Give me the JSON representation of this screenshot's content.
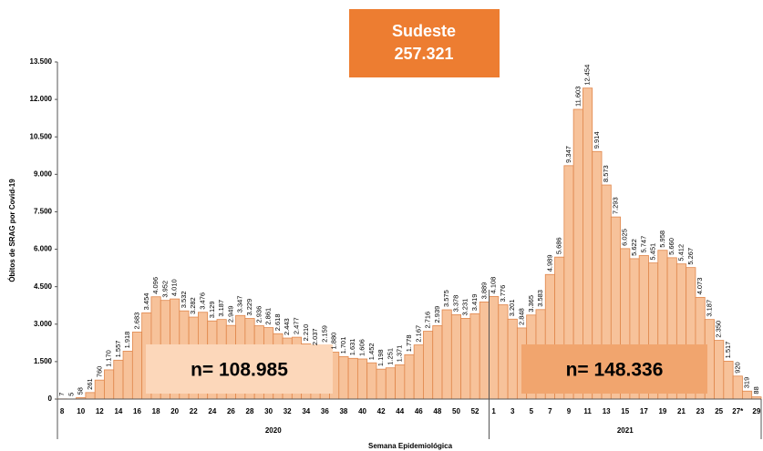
{
  "chart_data": {
    "type": "bar",
    "title": "Sudeste",
    "subtitle": "257.321",
    "ylabel": "Óbitos de SRAG por Covid-19",
    "xlabel": "Semana Epidemiológica",
    "groups": [
      "2020",
      "2021"
    ],
    "annotations": [
      "n= 108.985",
      "n= 148.336"
    ],
    "color": "#f7c29a",
    "edge_color": "#e0874c",
    "categories": [
      "8",
      null,
      "10",
      null,
      "12",
      null,
      "14",
      null,
      "16",
      null,
      "18",
      null,
      "20",
      null,
      "22",
      null,
      "24",
      null,
      "26",
      null,
      "28",
      null,
      "30",
      null,
      "32",
      null,
      "34",
      null,
      "36",
      null,
      "38",
      null,
      "40",
      null,
      "42",
      null,
      "44",
      null,
      "46",
      null,
      "48",
      null,
      "50",
      null,
      "52",
      null,
      "1",
      null,
      "3",
      null,
      "5",
      null,
      "7",
      null,
      "9",
      null,
      "11",
      null,
      "13",
      null,
      "15",
      null,
      "17",
      null,
      "19",
      null,
      "21",
      null,
      "23",
      null,
      "25",
      null,
      "27*",
      null,
      "29"
    ],
    "values": [
      7,
      5,
      58,
      261,
      760,
      1170,
      1557,
      1918,
      2683,
      3454,
      4096,
      3952,
      4010,
      3532,
      3282,
      3476,
      3129,
      3187,
      2949,
      3347,
      3229,
      2936,
      2861,
      2618,
      2443,
      2477,
      2210,
      2037,
      2159,
      1880,
      1701,
      1631,
      1606,
      1452,
      1198,
      1251,
      1371,
      1778,
      2167,
      2716,
      2939,
      3575,
      3378,
      3231,
      3419,
      3889,
      4108,
      3776,
      3201,
      2848,
      3365,
      3583,
      4989,
      5686,
      9347,
      11603,
      12454,
      9914,
      8573,
      7293,
      6025,
      5622,
      5747,
      5451,
      5958,
      5660,
      5412,
      5267,
      4073,
      3187,
      2350,
      1517,
      920,
      319,
      88
    ],
    "value_labels": [
      "7",
      "5",
      "58",
      "261",
      "760",
      "1.170",
      "1.557",
      "1.918",
      "2.683",
      "3.454",
      "4.096",
      "3.952",
      "4.010",
      "3.532",
      "3.282",
      "3.476",
      "3.129",
      "3.187",
      "2.949",
      "3.347",
      "3.229",
      "2.936",
      "2.861",
      "2.618",
      "2.443",
      "2.477",
      "2.210",
      "2.037",
      "2.159",
      "1.880",
      "1.701",
      "1.631",
      "1.606",
      "1.452",
      "1.198",
      "1.251",
      "1.371",
      "1.778",
      "2.167",
      "2.716",
      "2.939",
      "3.575",
      "3.378",
      "3.231",
      "3.419",
      "3.889",
      "4.108",
      "3.776",
      "3.201",
      "2.848",
      "3.365",
      "3.583",
      "4.989",
      "5.686",
      "9.347",
      "11.603",
      "12.454",
      "9.914",
      "8.573",
      "7.293",
      "6.025",
      "5.622",
      "5.747",
      "5.451",
      "5.958",
      "5.660",
      "5.412",
      "5.267",
      "4.073",
      "3.187",
      "2.350",
      "1.517",
      "920",
      "319",
      "88"
    ],
    "ylim": [
      0,
      13500
    ],
    "yticks": [
      0,
      {
        "value": 1500,
        "label": "1.500"
      },
      {
        "value": 3000,
        "label": "3.000"
      },
      {
        "value": 4500,
        "label": "4.500"
      },
      {
        "value": 6000,
        "label": "6.000"
      },
      {
        "value": 7500,
        "label": "7.500"
      },
      {
        "value": 9000,
        "label": "9.000"
      },
      {
        "value": 10500,
        "label": "10.500"
      },
      {
        "value": 12000,
        "label": "12.000"
      },
      {
        "value": 13500,
        "label": "13.500"
      }
    ]
  }
}
